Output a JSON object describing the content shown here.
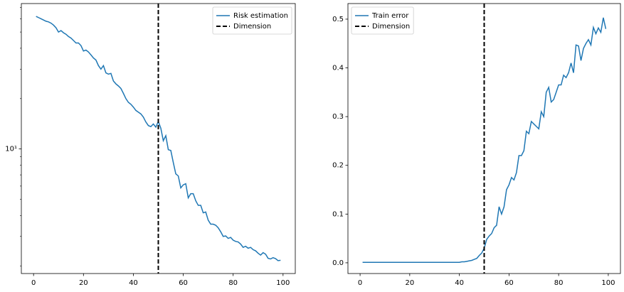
{
  "chart_data": [
    {
      "type": "line",
      "log_y": true,
      "x": [
        1,
        2,
        3,
        4,
        5,
        6,
        7,
        8,
        9,
        10,
        11,
        12,
        13,
        14,
        15,
        16,
        17,
        18,
        19,
        20,
        21,
        22,
        23,
        24,
        25,
        26,
        27,
        28,
        29,
        30,
        31,
        32,
        33,
        34,
        35,
        36,
        37,
        38,
        39,
        40,
        41,
        42,
        43,
        44,
        45,
        46,
        47,
        48,
        49,
        50,
        51,
        52,
        53,
        54,
        55,
        56,
        57,
        58,
        59,
        60,
        61,
        62,
        63,
        64,
        65,
        66,
        67,
        68,
        69,
        70,
        71,
        72,
        73,
        74,
        75,
        76,
        77,
        78,
        79,
        80,
        81,
        82,
        83,
        84,
        85,
        86,
        87,
        88,
        89,
        90,
        91,
        92,
        93,
        94,
        95,
        96,
        97,
        98,
        99
      ],
      "series": [
        {
          "name": "Risk estimation",
          "color": "#1f77b4",
          "values": [
            62,
            61,
            60,
            59,
            58,
            57.5,
            56.5,
            55,
            53,
            50,
            51,
            49.5,
            48.5,
            47,
            46,
            44.5,
            43,
            43,
            41.5,
            38.5,
            39,
            38,
            36.5,
            35,
            34,
            31.5,
            30,
            31.5,
            28.5,
            28,
            28.3,
            25.5,
            24.5,
            23.8,
            23,
            21.5,
            20,
            19,
            18.5,
            17.8,
            17,
            16.6,
            16.2,
            15.5,
            14.5,
            13.8,
            13.6,
            14.1,
            13.5,
            14.6,
            13.3,
            11.2,
            12.0,
            9.9,
            9.8,
            8.3,
            7.1,
            6.9,
            5.85,
            6.1,
            6.2,
            5.1,
            5.4,
            5.4,
            4.9,
            4.6,
            4.6,
            4.15,
            4.2,
            3.75,
            3.55,
            3.55,
            3.5,
            3.38,
            3.2,
            3.0,
            3.02,
            2.92,
            2.96,
            2.85,
            2.8,
            2.78,
            2.7,
            2.58,
            2.62,
            2.55,
            2.58,
            2.5,
            2.46,
            2.38,
            2.32,
            2.4,
            2.35,
            2.22,
            2.2,
            2.24,
            2.21,
            2.15,
            2.16
          ]
        }
      ],
      "vline": {
        "name": "Dimension",
        "x": 50,
        "color": "#000000"
      },
      "xlim": [
        -4.9,
        104.9
      ],
      "xticks": [
        0,
        20,
        40,
        60,
        80,
        100
      ],
      "ylim": [
        1.8,
        74
      ],
      "yticks": [
        {
          "value": 10,
          "label": "10¹"
        }
      ],
      "minor_yticks": [
        2,
        3,
        4,
        5,
        6,
        7,
        8,
        9,
        20,
        30,
        40,
        50,
        60,
        70
      ],
      "legend": "upper right"
    },
    {
      "type": "line",
      "log_y": false,
      "x": [
        1,
        2,
        3,
        4,
        5,
        6,
        7,
        8,
        9,
        10,
        11,
        12,
        13,
        14,
        15,
        16,
        17,
        18,
        19,
        20,
        21,
        22,
        23,
        24,
        25,
        26,
        27,
        28,
        29,
        30,
        31,
        32,
        33,
        34,
        35,
        36,
        37,
        38,
        39,
        40,
        41,
        42,
        43,
        44,
        45,
        46,
        47,
        48,
        49,
        50,
        51,
        52,
        53,
        54,
        55,
        56,
        57,
        58,
        59,
        60,
        61,
        62,
        63,
        64,
        65,
        66,
        67,
        68,
        69,
        70,
        71,
        72,
        73,
        74,
        75,
        76,
        77,
        78,
        79,
        80,
        81,
        82,
        83,
        84,
        85,
        86,
        87,
        88,
        89,
        90,
        91,
        92,
        93,
        94,
        95,
        96,
        97,
        98,
        99
      ],
      "series": [
        {
          "name": "Train error",
          "color": "#1f77b4",
          "values": [
            0.001,
            0.001,
            0.001,
            0.001,
            0.001,
            0.001,
            0.001,
            0.001,
            0.001,
            0.001,
            0.001,
            0.001,
            0.001,
            0.001,
            0.001,
            0.001,
            0.001,
            0.001,
            0.001,
            0.001,
            0.001,
            0.001,
            0.001,
            0.001,
            0.001,
            0.001,
            0.001,
            0.001,
            0.001,
            0.001,
            0.001,
            0.001,
            0.001,
            0.001,
            0.001,
            0.001,
            0.001,
            0.001,
            0.001,
            0.001,
            0.002,
            0.002,
            0.003,
            0.004,
            0.005,
            0.007,
            0.009,
            0.015,
            0.02,
            0.03,
            0.048,
            0.055,
            0.06,
            0.072,
            0.077,
            0.115,
            0.1,
            0.115,
            0.15,
            0.16,
            0.175,
            0.17,
            0.185,
            0.22,
            0.22,
            0.23,
            0.27,
            0.265,
            0.29,
            0.285,
            0.28,
            0.275,
            0.31,
            0.3,
            0.35,
            0.36,
            0.33,
            0.335,
            0.35,
            0.365,
            0.365,
            0.385,
            0.38,
            0.39,
            0.41,
            0.39,
            0.447,
            0.445,
            0.415,
            0.44,
            0.45,
            0.458,
            0.447,
            0.483,
            0.47,
            0.482,
            0.473,
            0.503,
            0.48
          ]
        }
      ],
      "vline": {
        "name": "Dimension",
        "x": 50,
        "color": "#000000"
      },
      "xlim": [
        -4.9,
        104.9
      ],
      "xticks": [
        0,
        20,
        40,
        60,
        80,
        100
      ],
      "ylim": [
        -0.022,
        0.532
      ],
      "yticks": [
        {
          "value": 0,
          "label": "0.0"
        },
        {
          "value": 0.1,
          "label": "0.1"
        },
        {
          "value": 0.2,
          "label": "0.2"
        },
        {
          "value": 0.3,
          "label": "0.3"
        },
        {
          "value": 0.4,
          "label": "0.4"
        },
        {
          "value": 0.5,
          "label": "0.5"
        }
      ],
      "legend": "upper left"
    }
  ]
}
